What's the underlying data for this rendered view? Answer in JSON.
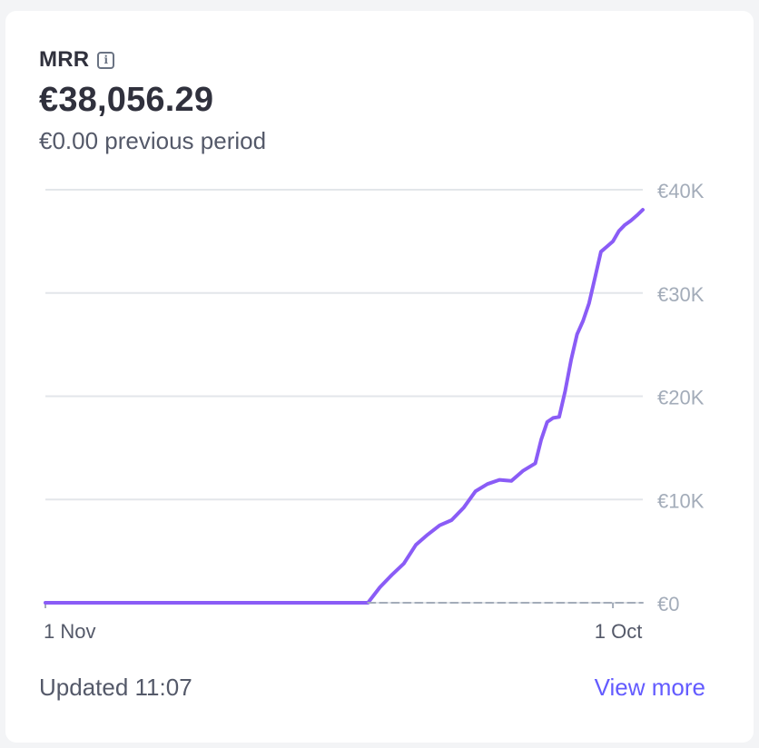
{
  "widget": {
    "title": "MRR",
    "icon": "info-icon",
    "value": "€38,056.29",
    "previous_label": "€0.00 previous period",
    "updated": "Updated 11:07",
    "view_more": "View more",
    "accent_color": "#8a5cf6",
    "link_color": "#635bff"
  },
  "chart_data": {
    "type": "line",
    "x_tick_labels": [
      "1 Nov",
      "1 Oct"
    ],
    "y_tick_labels": [
      "€0",
      "€10K",
      "€20K",
      "€30K",
      "€40K"
    ],
    "y_ticks": [
      0,
      10000,
      20000,
      30000,
      40000
    ],
    "ylim": [
      0,
      40000
    ],
    "grid": true,
    "y_axis_side": "right",
    "series": [
      {
        "color": "#8a5cf6",
        "x": [
          0,
          10,
          20,
          30,
          40,
          50,
          54,
          56,
          58,
          60,
          62,
          64,
          66,
          68,
          70,
          72,
          74,
          76,
          78,
          80,
          82,
          83,
          84,
          85,
          86,
          87,
          88,
          89,
          90,
          91,
          92,
          93,
          94,
          95,
          96,
          97,
          98,
          99,
          100
        ],
        "values": [
          0,
          0,
          0,
          0,
          0,
          0,
          0,
          1500,
          2700,
          3800,
          5600,
          6600,
          7500,
          8000,
          9200,
          10800,
          11500,
          11900,
          11800,
          12800,
          13500,
          15800,
          17500,
          17900,
          18000,
          20500,
          23500,
          26000,
          27300,
          29000,
          31500,
          34000,
          34500,
          35000,
          36000,
          36600,
          37000,
          37500,
          38056
        ]
      },
      {
        "style": "dashed",
        "color": "#a3acb9",
        "x": [
          54,
          100
        ],
        "values": [
          0,
          0
        ]
      }
    ]
  }
}
